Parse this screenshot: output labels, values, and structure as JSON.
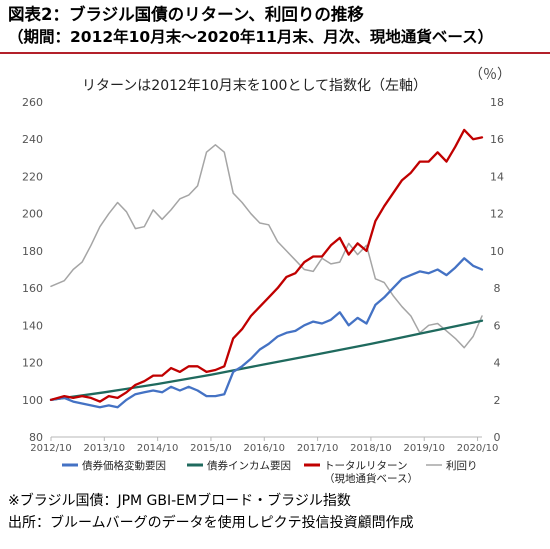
{
  "header": {
    "title": "図表2：ブラジル国債のリターン、利回りの推移",
    "subtitle": "（期間：2012年10月末〜2020年11月末、月次、現地通貨ベース）"
  },
  "footer": {
    "note1": "※ブラジル国債：JPM GBI-EMブロード・ブラジル指数",
    "note2": "出所：ブルームバーグのデータを使用しピクテ投信投資顧問作成"
  },
  "colors": {
    "price": "#4472c4",
    "income": "#1f6a5e",
    "total": "#c00000",
    "yield": "#a5a5a5"
  },
  "chart_data": {
    "type": "line",
    "annotation": "リターンは2012年10月末を100として指数化（左軸）",
    "right_unit": "（％）",
    "x_ticks": [
      "2012/10",
      "2013/10",
      "2014/10",
      "2015/10",
      "2016/10",
      "2017/10",
      "2018/10",
      "2019/10",
      "2020/10"
    ],
    "x_range": [
      "2012-10",
      "2020-11"
    ],
    "ylim_left": [
      80,
      260
    ],
    "yticks_left": [
      80,
      100,
      120,
      140,
      160,
      180,
      200,
      220,
      240,
      260
    ],
    "ylim_right": [
      0,
      18
    ],
    "yticks_right": [
      0,
      2,
      4,
      6,
      8,
      10,
      12,
      14,
      16,
      18
    ],
    "grid": false,
    "legend_position": "bottom",
    "series": [
      {
        "name": "債券価格変動要因",
        "axis": "left",
        "points": [
          [
            "2012-10",
            100
          ],
          [
            "2013-01",
            101
          ],
          [
            "2013-03",
            99
          ],
          [
            "2013-05",
            98
          ],
          [
            "2013-07",
            97
          ],
          [
            "2013-09",
            96
          ],
          [
            "2013-11",
            97
          ],
          [
            "2014-01",
            96
          ],
          [
            "2014-03",
            100
          ],
          [
            "2014-05",
            103
          ],
          [
            "2014-07",
            104
          ],
          [
            "2014-09",
            105
          ],
          [
            "2014-11",
            104
          ],
          [
            "2015-01",
            107
          ],
          [
            "2015-03",
            105
          ],
          [
            "2015-05",
            107
          ],
          [
            "2015-07",
            105
          ],
          [
            "2015-09",
            102
          ],
          [
            "2015-11",
            102
          ],
          [
            "2016-01",
            103
          ],
          [
            "2016-03",
            115
          ],
          [
            "2016-05",
            118
          ],
          [
            "2016-07",
            122
          ],
          [
            "2016-09",
            127
          ],
          [
            "2016-11",
            130
          ],
          [
            "2017-01",
            134
          ],
          [
            "2017-03",
            136
          ],
          [
            "2017-05",
            137
          ],
          [
            "2017-07",
            140
          ],
          [
            "2017-09",
            142
          ],
          [
            "2017-11",
            141
          ],
          [
            "2018-01",
            143
          ],
          [
            "2018-03",
            147
          ],
          [
            "2018-05",
            140
          ],
          [
            "2018-07",
            144
          ],
          [
            "2018-09",
            141
          ],
          [
            "2018-11",
            151
          ],
          [
            "2019-01",
            155
          ],
          [
            "2019-03",
            160
          ],
          [
            "2019-05",
            165
          ],
          [
            "2019-07",
            167
          ],
          [
            "2019-09",
            169
          ],
          [
            "2019-11",
            168
          ],
          [
            "2020-01",
            170
          ],
          [
            "2020-03",
            167
          ],
          [
            "2020-05",
            171
          ],
          [
            "2020-07",
            176
          ],
          [
            "2020-09",
            172
          ],
          [
            "2020-11",
            170
          ]
        ]
      },
      {
        "name": "債券インカム要因",
        "axis": "left",
        "points": [
          [
            "2012-10",
            100
          ],
          [
            "2013-10",
            104
          ],
          [
            "2014-10",
            108.5
          ],
          [
            "2015-10",
            113.5
          ],
          [
            "2016-10",
            119
          ],
          [
            "2017-10",
            124.5
          ],
          [
            "2018-10",
            130
          ],
          [
            "2019-10",
            136
          ],
          [
            "2020-11",
            142.5
          ]
        ]
      },
      {
        "name": "トータルリターン（現地通貨ベース）",
        "axis": "left",
        "points": [
          [
            "2012-10",
            100
          ],
          [
            "2013-01",
            102
          ],
          [
            "2013-03",
            101
          ],
          [
            "2013-05",
            102
          ],
          [
            "2013-07",
            101
          ],
          [
            "2013-09",
            99
          ],
          [
            "2013-11",
            102
          ],
          [
            "2014-01",
            101
          ],
          [
            "2014-03",
            104
          ],
          [
            "2014-05",
            108
          ],
          [
            "2014-07",
            110
          ],
          [
            "2014-09",
            113
          ],
          [
            "2014-11",
            113
          ],
          [
            "2015-01",
            117
          ],
          [
            "2015-03",
            115
          ],
          [
            "2015-05",
            118
          ],
          [
            "2015-07",
            118
          ],
          [
            "2015-09",
            115
          ],
          [
            "2015-11",
            116
          ],
          [
            "2016-01",
            118
          ],
          [
            "2016-03",
            133
          ],
          [
            "2016-05",
            138
          ],
          [
            "2016-07",
            145
          ],
          [
            "2016-09",
            150
          ],
          [
            "2016-11",
            155
          ],
          [
            "2017-01",
            160
          ],
          [
            "2017-03",
            166
          ],
          [
            "2017-05",
            168
          ],
          [
            "2017-07",
            174
          ],
          [
            "2017-09",
            177
          ],
          [
            "2017-11",
            177
          ],
          [
            "2018-01",
            183
          ],
          [
            "2018-03",
            187
          ],
          [
            "2018-05",
            178
          ],
          [
            "2018-07",
            184
          ],
          [
            "2018-09",
            180
          ],
          [
            "2018-11",
            196
          ],
          [
            "2019-01",
            204
          ],
          [
            "2019-03",
            211
          ],
          [
            "2019-05",
            218
          ],
          [
            "2019-07",
            222
          ],
          [
            "2019-09",
            228
          ],
          [
            "2019-11",
            228
          ],
          [
            "2020-01",
            233
          ],
          [
            "2020-03",
            228
          ],
          [
            "2020-05",
            236
          ],
          [
            "2020-07",
            245
          ],
          [
            "2020-09",
            240
          ],
          [
            "2020-11",
            241
          ]
        ]
      },
      {
        "name": "利回り",
        "axis": "right",
        "points": [
          [
            "2012-10",
            8.1
          ],
          [
            "2013-01",
            8.4
          ],
          [
            "2013-03",
            9.0
          ],
          [
            "2013-05",
            9.4
          ],
          [
            "2013-07",
            10.3
          ],
          [
            "2013-09",
            11.3
          ],
          [
            "2013-11",
            12.0
          ],
          [
            "2014-01",
            12.6
          ],
          [
            "2014-03",
            12.1
          ],
          [
            "2014-05",
            11.2
          ],
          [
            "2014-07",
            11.3
          ],
          [
            "2014-09",
            12.2
          ],
          [
            "2014-11",
            11.7
          ],
          [
            "2015-01",
            12.2
          ],
          [
            "2015-03",
            12.8
          ],
          [
            "2015-05",
            13.0
          ],
          [
            "2015-07",
            13.5
          ],
          [
            "2015-09",
            15.3
          ],
          [
            "2015-11",
            15.7
          ],
          [
            "2016-01",
            15.3
          ],
          [
            "2016-03",
            13.1
          ],
          [
            "2016-05",
            12.6
          ],
          [
            "2016-07",
            12.0
          ],
          [
            "2016-09",
            11.5
          ],
          [
            "2016-11",
            11.4
          ],
          [
            "2017-01",
            10.5
          ],
          [
            "2017-03",
            10.0
          ],
          [
            "2017-05",
            9.5
          ],
          [
            "2017-07",
            9.0
          ],
          [
            "2017-09",
            8.9
          ],
          [
            "2017-11",
            9.6
          ],
          [
            "2018-01",
            9.3
          ],
          [
            "2018-03",
            9.4
          ],
          [
            "2018-05",
            10.4
          ],
          [
            "2018-07",
            9.8
          ],
          [
            "2018-09",
            10.3
          ],
          [
            "2018-11",
            8.5
          ],
          [
            "2019-01",
            8.3
          ],
          [
            "2019-03",
            7.6
          ],
          [
            "2019-05",
            7.0
          ],
          [
            "2019-07",
            6.5
          ],
          [
            "2019-09",
            5.6
          ],
          [
            "2019-11",
            6.0
          ],
          [
            "2020-01",
            6.1
          ],
          [
            "2020-03",
            5.7
          ],
          [
            "2020-05",
            5.3
          ],
          [
            "2020-07",
            4.8
          ],
          [
            "2020-09",
            5.4
          ],
          [
            "2020-11",
            6.5
          ]
        ]
      }
    ]
  }
}
